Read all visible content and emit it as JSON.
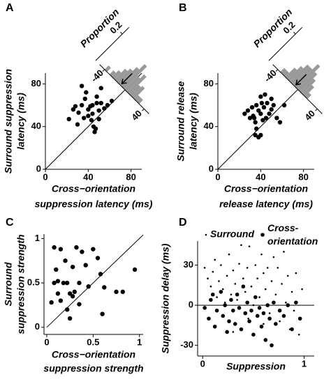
{
  "chart_data": [
    {
      "type": "scatter",
      "panel": "A",
      "xlabel": [
        "Cross−orientation",
        "suppression latency (ms)"
      ],
      "ylabel": [
        "Surround suppression",
        "latency (ms)"
      ],
      "xlim": [
        0,
        90
      ],
      "ylim": [
        0,
        90
      ],
      "xticks": [
        0,
        40,
        80
      ],
      "yticks": [
        0,
        40,
        80
      ],
      "diagonal": true,
      "series": [
        {
          "color": "#000000",
          "x": [
            22,
            26,
            28,
            30,
            31,
            34,
            34,
            36,
            37,
            38,
            40,
            40,
            42,
            43,
            44,
            45,
            46,
            47,
            48,
            48,
            50,
            50,
            52,
            52,
            55,
            58,
            62,
            44
          ],
          "y": [
            47,
            56,
            59,
            42,
            53,
            78,
            60,
            48,
            66,
            72,
            56,
            50,
            59,
            46,
            52,
            40,
            35,
            38,
            68,
            62,
            55,
            47,
            76,
            62,
            57,
            60,
            64,
            60
          ]
        }
      ],
      "histogram": {
        "ylabel": "Proportion",
        "color": "#999999",
        "bins": [
          -50,
          -45,
          -40,
          -35,
          -30,
          -25,
          -20,
          -15,
          -10,
          -5,
          0,
          5,
          10,
          15,
          20,
          25,
          30,
          35,
          40,
          45,
          50
        ],
        "values": [
          0,
          0,
          0.03,
          0,
          0.03,
          0.05,
          0.08,
          0.1,
          0.13,
          0.17,
          0.1,
          0.13,
          0.07,
          0.08,
          0.03,
          0.03,
          0,
          0,
          0,
          0
        ],
        "xticks": [
          -40,
          40
        ],
        "ylim": [
          0,
          0.25
        ],
        "yticks": [
          0.2
        ],
        "arrow": -8
      }
    },
    {
      "type": "scatter",
      "panel": "B",
      "xlabel": [
        "Cross−orientation",
        "release latency (ms)"
      ],
      "ylabel": [
        "Surround release",
        "latency (ms)"
      ],
      "xlim": [
        0,
        90
      ],
      "ylim": [
        0,
        90
      ],
      "xticks": [
        0,
        40,
        80
      ],
      "yticks": [
        0,
        40,
        80
      ],
      "diagonal": true,
      "series": [
        {
          "color": "#000000",
          "x": [
            25,
            28,
            30,
            32,
            33,
            35,
            36,
            36,
            38,
            40,
            40,
            41,
            42,
            43,
            44,
            45,
            46,
            48,
            50,
            52,
            55,
            38,
            40,
            35,
            58,
            62,
            50,
            34
          ],
          "y": [
            52,
            55,
            48,
            58,
            50,
            44,
            60,
            38,
            55,
            52,
            68,
            62,
            46,
            58,
            70,
            48,
            62,
            52,
            66,
            60,
            48,
            30,
            32,
            32,
            44,
            60,
            56,
            48
          ]
        }
      ],
      "histogram": {
        "ylabel": "Proportion",
        "color": "#999999",
        "bins": [
          -50,
          -45,
          -40,
          -35,
          -30,
          -25,
          -20,
          -15,
          -10,
          -5,
          0,
          5,
          10,
          15,
          20,
          25,
          30,
          35,
          40,
          45,
          50
        ],
        "values": [
          0,
          0,
          0,
          0.03,
          0.03,
          0.07,
          0.1,
          0.13,
          0.13,
          0.17,
          0.13,
          0.1,
          0.07,
          0.03,
          0,
          0,
          0,
          0,
          0,
          0
        ],
        "xticks": [
          -40,
          40
        ],
        "ylim": [
          0,
          0.25
        ],
        "yticks": [
          0.2
        ],
        "arrow": -6
      }
    },
    {
      "type": "scatter",
      "panel": "C",
      "xlabel": [
        "Cross−orientation",
        "suppression strength"
      ],
      "ylabel": [
        "Surround",
        "suppression strength"
      ],
      "xlim": [
        -0.03,
        1.04
      ],
      "ylim": [
        -0.08,
        1.05
      ],
      "xticks": [
        0,
        0.5,
        1
      ],
      "yticks": [
        0,
        0.5,
        1
      ],
      "diagonal": true,
      "series": [
        {
          "color": "#000000",
          "x": [
            0.05,
            0.08,
            0.08,
            0.1,
            0.12,
            0.12,
            0.15,
            0.15,
            0.18,
            0.2,
            0.22,
            0.22,
            0.25,
            0.25,
            0.28,
            0.28,
            0.32,
            0.35,
            0.38,
            0.42,
            0.45,
            0.5,
            0.55,
            0.58,
            0.6,
            0.62,
            0.75,
            0.82,
            0.95,
            0.3,
            0.35
          ],
          "y": [
            0.28,
            0.9,
            0.5,
            0.65,
            0.38,
            0.52,
            0.88,
            0.3,
            0.5,
            0.75,
            0.2,
            0.5,
            0.1,
            0.38,
            0.68,
            0.35,
            0.9,
            0.5,
            0.85,
            0.7,
            0.46,
            0.88,
            0.78,
            0.6,
            0.15,
            0.45,
            0.4,
            0.4,
            0.65,
            0.4,
            0.26
          ]
        }
      ]
    },
    {
      "type": "scatter",
      "panel": "D",
      "xlabel": [
        "Suppression"
      ],
      "ylabel": [
        "Suppression delay (ms)"
      ],
      "xlim": [
        -0.05,
        1.1
      ],
      "ylim": [
        -38,
        48
      ],
      "xticks": [
        0,
        1
      ],
      "yticks": [
        -30,
        0,
        30
      ],
      "hline": 0,
      "series": [
        {
          "name": "Surround",
          "color": "#000000",
          "x": [
            0.02,
            0.05,
            0.08,
            0.1,
            0.12,
            0.14,
            0.16,
            0.18,
            0.2,
            0.22,
            0.24,
            0.26,
            0.28,
            0.3,
            0.32,
            0.34,
            0.36,
            0.38,
            0.4,
            0.42,
            0.44,
            0.46,
            0.48,
            0.5,
            0.52,
            0.54,
            0.56,
            0.58,
            0.6,
            0.62,
            0.64,
            0.66,
            0.68,
            0.7,
            0.72,
            0.74,
            0.76,
            0.78,
            0.8,
            0.82,
            0.84,
            0.86,
            0.88,
            0.9,
            0.92,
            0.95,
            0.98,
            0.3,
            0.45,
            0.6
          ],
          "y": [
            28,
            20,
            14,
            25,
            34,
            6,
            18,
            30,
            12,
            2,
            22,
            38,
            8,
            26,
            16,
            4,
            31,
            45,
            20,
            10,
            28,
            44,
            14,
            0,
            30,
            20,
            6,
            38,
            24,
            12,
            28,
            -6,
            18,
            36,
            8,
            28,
            -12,
            16,
            40,
            2,
            22,
            -18,
            10,
            -4,
            24,
            -22,
            12,
            -20,
            -10,
            -14
          ]
        },
        {
          "name": "Cross-orientation",
          "color": "#000000",
          "x": [
            0.02,
            0.06,
            0.08,
            0.12,
            0.14,
            0.18,
            0.2,
            0.22,
            0.24,
            0.26,
            0.28,
            0.3,
            0.32,
            0.34,
            0.36,
            0.38,
            0.4,
            0.42,
            0.44,
            0.46,
            0.48,
            0.5,
            0.52,
            0.54,
            0.56,
            0.58,
            0.6,
            0.62,
            0.64,
            0.66,
            0.68,
            0.7,
            0.72,
            0.76,
            0.8,
            0.84,
            0.88,
            0.92,
            0.96,
            0.1
          ],
          "y": [
            -2,
            -10,
            4,
            -16,
            -4,
            10,
            -8,
            0,
            -20,
            -12,
            4,
            -4,
            -14,
            8,
            -2,
            -18,
            14,
            -6,
            2,
            -12,
            -4,
            -22,
            6,
            -8,
            -2,
            -16,
            -6,
            -26,
            0,
            -10,
            -30,
            2,
            -14,
            -4,
            -8,
            0,
            -18,
            2,
            -10,
            8
          ]
        }
      ]
    }
  ]
}
